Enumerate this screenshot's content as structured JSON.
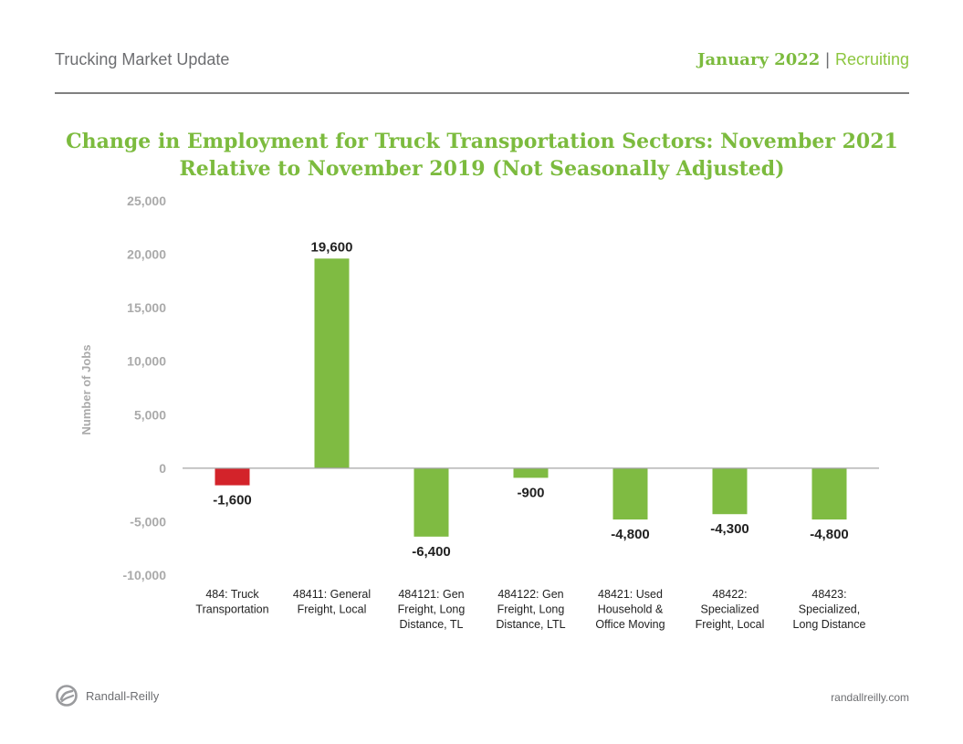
{
  "header": {
    "left_title": "Trucking Market Update",
    "month": "January 2022",
    "separator": "|",
    "section": "Recruiting"
  },
  "footer": {
    "brand": "Randall-Reilly",
    "url": "randallreilly.com"
  },
  "colors": {
    "positive_bar": "#7fbb42",
    "negative_total_bar": "#d3232a",
    "title": "#7cbb3e",
    "axis_text": "#aaaaaa"
  },
  "chart_data": {
    "type": "bar",
    "title_line1": "Change in Employment for Truck Transportation Sectors: November 2021",
    "title_line2": "Relative to November 2019 (Not Seasonally Adjusted)",
    "xlabel": "",
    "ylabel": "Number of Jobs",
    "ylim": [
      -10000,
      25000
    ],
    "yticks": [
      25000,
      20000,
      15000,
      10000,
      5000,
      0,
      -5000,
      -10000
    ],
    "ytick_labels": [
      "25,000",
      "20,000",
      "15,000",
      "10,000",
      "5,000",
      "0",
      "-5,000",
      "-10,000"
    ],
    "categories": [
      [
        "484: Truck",
        "Transportation"
      ],
      [
        "48411: General",
        "Freight, Local"
      ],
      [
        "484121: Gen",
        "Freight, Long",
        "Distance, TL"
      ],
      [
        "484122: Gen",
        "Freight, Long",
        "Distance, LTL"
      ],
      [
        "48421: Used",
        "Household &",
        "Office Moving"
      ],
      [
        "48422:",
        "Specialized",
        "Freight, Local"
      ],
      [
        "48423:",
        "Specialized,",
        "Long Distance"
      ]
    ],
    "values": [
      -1600,
      19600,
      -6400,
      -900,
      -4800,
      -4300,
      -4800
    ],
    "data_labels": [
      "-1,600",
      "19,600",
      "-6,400",
      "-900",
      "-4,800",
      "-4,300",
      "-4,800"
    ],
    "bar_colors": [
      "#d3232a",
      "#7fbb42",
      "#7fbb42",
      "#7fbb42",
      "#7fbb42",
      "#7fbb42",
      "#7fbb42"
    ],
    "grid": false,
    "legend": "none"
  }
}
